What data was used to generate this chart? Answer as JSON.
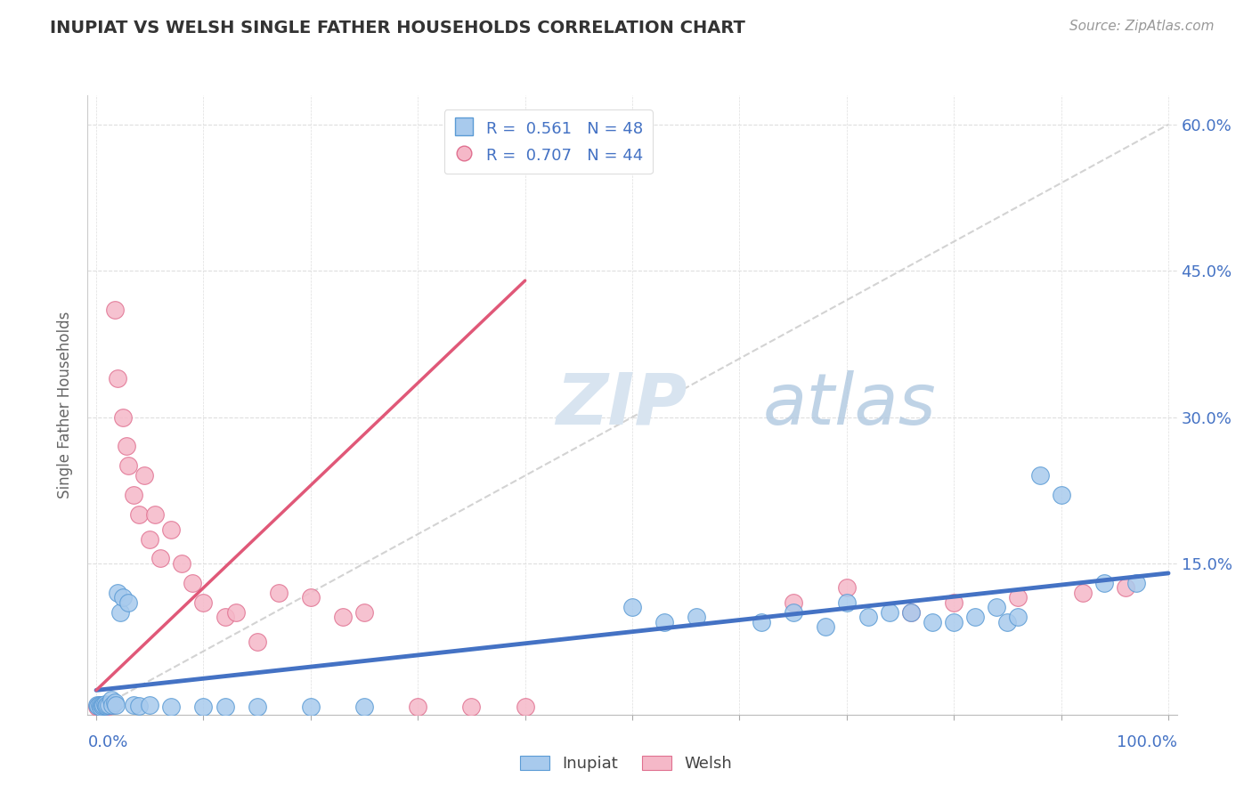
{
  "title": "INUPIAT VS WELSH SINGLE FATHER HOUSEHOLDS CORRELATION CHART",
  "source": "Source: ZipAtlas.com",
  "ylabel": "Single Father Households",
  "inupiat_color": "#A8CAED",
  "inupiat_edge": "#5B9BD5",
  "welsh_color": "#F5B8C8",
  "welsh_edge": "#E07090",
  "line_inupiat_color": "#4472C4",
  "line_welsh_color": "#E05878",
  "ref_line_color": "#C8C8C8",
  "background_color": "#FFFFFF",
  "grid_color": "#DEDEDE",
  "ytick_color": "#4472C4",
  "xtick_color": "#4472C4",
  "inupiat_scatter": [
    [
      0.001,
      0.005
    ],
    [
      0.002,
      0.004
    ],
    [
      0.003,
      0.005
    ],
    [
      0.004,
      0.003
    ],
    [
      0.005,
      0.005
    ],
    [
      0.006,
      0.004
    ],
    [
      0.007,
      0.005
    ],
    [
      0.008,
      0.006
    ],
    [
      0.009,
      0.004
    ],
    [
      0.01,
      0.005
    ],
    [
      0.012,
      0.005
    ],
    [
      0.014,
      0.01
    ],
    [
      0.015,
      0.005
    ],
    [
      0.017,
      0.008
    ],
    [
      0.018,
      0.005
    ],
    [
      0.02,
      0.12
    ],
    [
      0.022,
      0.1
    ],
    [
      0.025,
      0.115
    ],
    [
      0.03,
      0.11
    ],
    [
      0.035,
      0.005
    ],
    [
      0.04,
      0.004
    ],
    [
      0.05,
      0.005
    ],
    [
      0.07,
      0.003
    ],
    [
      0.1,
      0.003
    ],
    [
      0.12,
      0.003
    ],
    [
      0.15,
      0.003
    ],
    [
      0.2,
      0.003
    ],
    [
      0.25,
      0.003
    ],
    [
      0.5,
      0.105
    ],
    [
      0.53,
      0.09
    ],
    [
      0.56,
      0.095
    ],
    [
      0.62,
      0.09
    ],
    [
      0.65,
      0.1
    ],
    [
      0.68,
      0.085
    ],
    [
      0.7,
      0.11
    ],
    [
      0.72,
      0.095
    ],
    [
      0.74,
      0.1
    ],
    [
      0.76,
      0.1
    ],
    [
      0.78,
      0.09
    ],
    [
      0.8,
      0.09
    ],
    [
      0.82,
      0.095
    ],
    [
      0.84,
      0.105
    ],
    [
      0.85,
      0.09
    ],
    [
      0.86,
      0.095
    ],
    [
      0.88,
      0.24
    ],
    [
      0.9,
      0.22
    ],
    [
      0.94,
      0.13
    ],
    [
      0.97,
      0.13
    ]
  ],
  "welsh_scatter": [
    [
      0.001,
      0.003
    ],
    [
      0.002,
      0.004
    ],
    [
      0.003,
      0.003
    ],
    [
      0.004,
      0.005
    ],
    [
      0.005,
      0.004
    ],
    [
      0.006,
      0.003
    ],
    [
      0.007,
      0.004
    ],
    [
      0.008,
      0.005
    ],
    [
      0.009,
      0.004
    ],
    [
      0.01,
      0.005
    ],
    [
      0.012,
      0.004
    ],
    [
      0.015,
      0.005
    ],
    [
      0.017,
      0.41
    ],
    [
      0.02,
      0.34
    ],
    [
      0.025,
      0.3
    ],
    [
      0.028,
      0.27
    ],
    [
      0.03,
      0.25
    ],
    [
      0.035,
      0.22
    ],
    [
      0.04,
      0.2
    ],
    [
      0.045,
      0.24
    ],
    [
      0.05,
      0.175
    ],
    [
      0.055,
      0.2
    ],
    [
      0.06,
      0.155
    ],
    [
      0.07,
      0.185
    ],
    [
      0.08,
      0.15
    ],
    [
      0.09,
      0.13
    ],
    [
      0.1,
      0.11
    ],
    [
      0.12,
      0.095
    ],
    [
      0.13,
      0.1
    ],
    [
      0.15,
      0.07
    ],
    [
      0.17,
      0.12
    ],
    [
      0.2,
      0.115
    ],
    [
      0.23,
      0.095
    ],
    [
      0.25,
      0.1
    ],
    [
      0.3,
      0.003
    ],
    [
      0.35,
      0.003
    ],
    [
      0.4,
      0.003
    ],
    [
      0.65,
      0.11
    ],
    [
      0.7,
      0.125
    ],
    [
      0.76,
      0.1
    ],
    [
      0.8,
      0.11
    ],
    [
      0.86,
      0.115
    ],
    [
      0.92,
      0.12
    ],
    [
      0.96,
      0.125
    ]
  ],
  "inupiat_trend_x": [
    0.0,
    1.0
  ],
  "inupiat_trend_y": [
    0.02,
    0.14
  ],
  "welsh_trend_x": [
    0.0,
    0.4
  ],
  "welsh_trend_y": [
    0.02,
    0.44
  ],
  "ref_line_x": [
    0.0,
    1.0
  ],
  "ref_line_y": [
    0.0,
    0.6
  ],
  "xlim": [
    0.0,
    1.0
  ],
  "ylim": [
    0.0,
    0.63
  ],
  "yticks": [
    0.0,
    0.15,
    0.3,
    0.45,
    0.6
  ],
  "ytick_labels": [
    "",
    "15.0%",
    "30.0%",
    "45.0%",
    "60.0%"
  ],
  "legend_entries": [
    "R =  0.561   N = 48",
    "R =  0.707   N = 44"
  ]
}
